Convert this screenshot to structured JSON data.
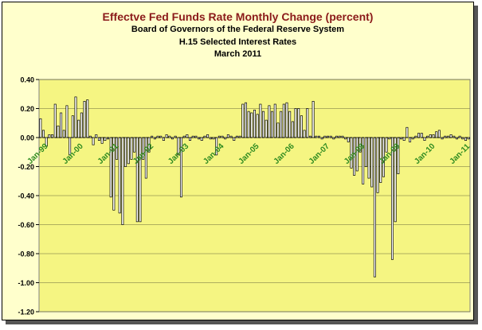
{
  "chart_data": {
    "type": "bar",
    "title": "Effectve Fed Funds Rate Monthly Change (percent)",
    "subtitles": [
      "Board of Governors of the Federal Reserve System",
      "H.15 Selected Interest Rates",
      "March 2011"
    ],
    "xlabel": "",
    "ylabel": "",
    "ylim": [
      -1.2,
      0.4
    ],
    "yticks": [
      "0.40",
      "0.20",
      "0.00",
      "-0.20",
      "-0.40",
      "-0.60",
      "-0.80",
      "-1.00",
      "-1.20"
    ],
    "xticks": [
      "Jan-99",
      "Jan-00",
      "Jan-01",
      "Jan-02",
      "Jan-03",
      "Jan-04",
      "Jan-05",
      "Jan-06",
      "Jan-07",
      "Jan-08",
      "Jan-09",
      "Jan-10",
      "Jan-11"
    ],
    "grid": true,
    "legend": "none",
    "colors": {
      "plot_bg": "#f5f582",
      "frame_bg": "#ffffcc",
      "bar": "#ffffff",
      "bar_edge": "#000000",
      "title": "#8b1a1a",
      "xtick": "#2e8b20"
    },
    "start": "Jan-99",
    "values": [
      0.13,
      0.05,
      -0.06,
      0.02,
      0.02,
      0.23,
      0.08,
      0.17,
      0.05,
      0.22,
      -0.12,
      0.15,
      0.28,
      0.12,
      0.17,
      0.25,
      0.26,
      0.01,
      -0.05,
      0.02,
      -0.02,
      -0.04,
      -0.02,
      -0.01,
      -0.41,
      -0.5,
      -0.15,
      -0.52,
      -0.6,
      -0.2,
      -0.18,
      -0.15,
      -0.1,
      -0.58,
      -0.58,
      -0.15,
      -0.28,
      -0.1,
      0.01,
      -0.01,
      0.01,
      0.01,
      -0.02,
      0.02,
      0.01,
      -0.01,
      0.01,
      -0.12,
      -0.41,
      0.01,
      0.02,
      -0.02,
      0.01,
      0.01,
      -0.01,
      -0.02,
      0.01,
      0.02,
      -0.01,
      -0.01,
      -0.12,
      0.01,
      0.01,
      -0.01,
      0.02,
      0.01,
      -0.02,
      0.01,
      0.01,
      0.23,
      0.24,
      0.18,
      0.17,
      0.19,
      0.16,
      0.23,
      0.18,
      0.12,
      0.22,
      0.18,
      0.23,
      0.1,
      0.18,
      0.23,
      0.24,
      0.18,
      0.11,
      0.2,
      0.2,
      0.15,
      0.05,
      0.2,
      0.01,
      0.25,
      0.01,
      0.01,
      -0.01,
      0.01,
      0.01,
      0.01,
      -0.01,
      0.01,
      0.01,
      0.01,
      -0.01,
      -0.03,
      -0.21,
      -0.26,
      -0.23,
      -0.1,
      -0.32,
      -0.2,
      -0.28,
      -0.34,
      -0.96,
      -0.38,
      -0.31,
      -0.27,
      -0.1,
      -0.01,
      -0.84,
      -0.58,
      -0.25,
      -0.01,
      -0.02,
      0.07,
      -0.03,
      -0.01,
      0.01,
      0.03,
      0.03,
      -0.02,
      0.01,
      0.02,
      0.02,
      0.04,
      0.05,
      -0.01,
      0.01,
      0.01,
      0.02,
      0.01,
      -0.01,
      0.01,
      -0.01,
      -0.02,
      -0.01
    ]
  }
}
